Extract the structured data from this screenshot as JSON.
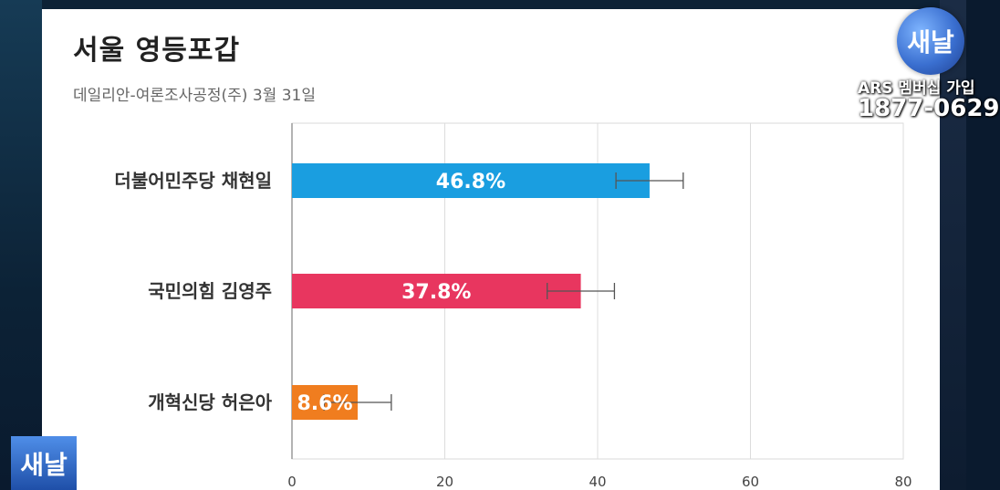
{
  "header": {
    "title": "서울 영등포갑",
    "subtitle": "데일리안-여론조사공정(주) 3월 31일"
  },
  "overlay": {
    "logo_top": "새날",
    "ars_line1": "ARS 멤버십 가입",
    "ars_line2": "1877-0629",
    "logo_bottom": "새날"
  },
  "chart_data": {
    "type": "bar",
    "orientation": "horizontal",
    "categories": [
      "더불어민주당 채현일",
      "국민의힘 김영주",
      "개혁신당 허은아"
    ],
    "values": [
      46.8,
      37.8,
      8.6
    ],
    "data_labels": [
      "46.8%",
      "37.8%",
      "8.6%"
    ],
    "error_range": [
      [
        42.4,
        51.2
      ],
      [
        33.4,
        42.2
      ],
      [
        4.2,
        13.0
      ]
    ],
    "colors": [
      "#1a9ee0",
      "#e8365f",
      "#f07d1f"
    ],
    "xlim": [
      0,
      80
    ],
    "xticks": [
      0,
      20,
      40,
      60,
      80
    ],
    "title": "서울 영등포갑",
    "subtitle": "데일리안-여론조사공정(주) 3월 31일",
    "grid": true
  }
}
